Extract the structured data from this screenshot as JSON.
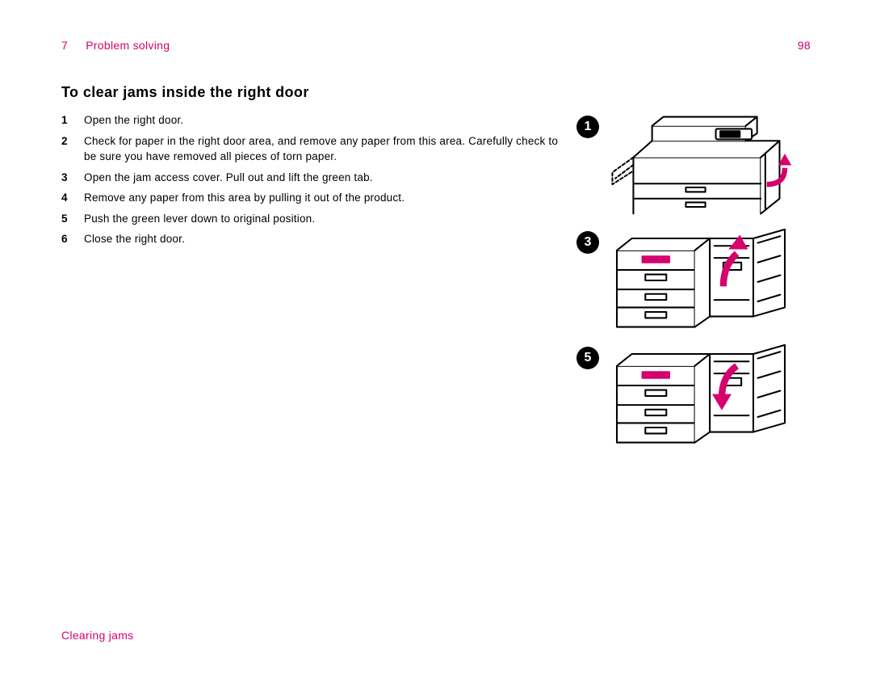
{
  "header": {
    "chapter_number": "7",
    "chapter_title": "Problem solving",
    "page_number": "98"
  },
  "title": "To clear jams inside the right door",
  "steps": [
    {
      "n": "1",
      "text": "Open the right door."
    },
    {
      "n": "2",
      "text": "Check for paper in the right door area, and remove any paper from this area. Carefully check to be sure you have removed all pieces of torn paper."
    },
    {
      "n": "3",
      "text": "Open the jam access cover. Pull out and lift the green tab."
    },
    {
      "n": "4",
      "text": "Remove any paper from this area by pulling it out of the product."
    },
    {
      "n": "5",
      "text": "Push the green lever down to original position."
    },
    {
      "n": "6",
      "text": "Close the right door."
    }
  ],
  "figures": [
    {
      "callout": "1"
    },
    {
      "callout": "3"
    },
    {
      "callout": "5"
    }
  ],
  "footer": {
    "section": "Clearing jams"
  },
  "colors": {
    "accent": "#d6006e",
    "text": "#000000",
    "bg": "#ffffff"
  }
}
